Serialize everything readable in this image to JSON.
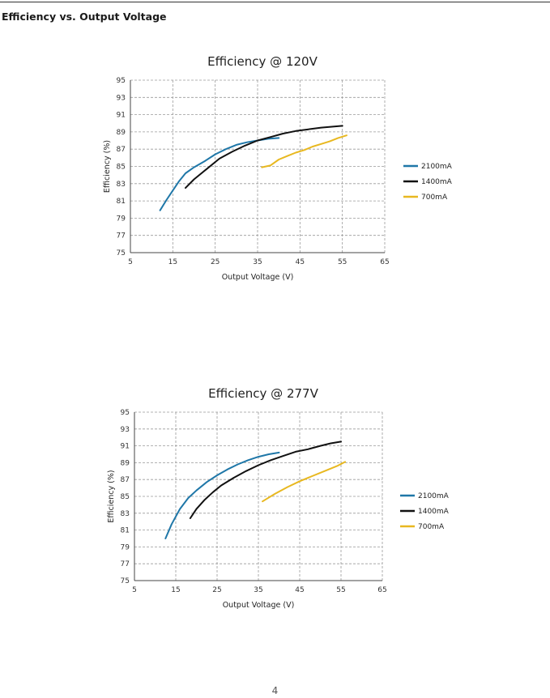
{
  "page": {
    "heading": "Efficiency vs. Output Voltage",
    "page_number": "4"
  },
  "chart_data": [
    {
      "type": "line",
      "title": "Efficiency @ 120V",
      "xlabel": "Output Voltage (V)",
      "ylabel": "Efficiency (%)",
      "xlim": [
        5,
        65
      ],
      "ylim": [
        75,
        95
      ],
      "xticks": [
        "5",
        "15",
        "25",
        "35",
        "45",
        "55",
        "65"
      ],
      "yticks": [
        "75",
        "77",
        "79",
        "81",
        "83",
        "85",
        "87",
        "89",
        "91",
        "93",
        "95"
      ],
      "grid": true,
      "legend_position": "right",
      "series": [
        {
          "name": "2100mA",
          "color": "#1f77a8",
          "x": [
            12,
            13.5,
            15,
            16.5,
            18,
            20,
            22.5,
            25,
            27.5,
            30,
            32.5,
            35,
            37.5,
            40
          ],
          "y": [
            79.9,
            81.1,
            82.2,
            83.3,
            84.2,
            84.9,
            85.6,
            86.4,
            87.0,
            87.5,
            87.8,
            88.0,
            88.2,
            88.3
          ]
        },
        {
          "name": "1400mA",
          "color": "#111111",
          "x": [
            18,
            20,
            23,
            26,
            29,
            32,
            35,
            38,
            41,
            44,
            47,
            50,
            52.5,
            55
          ],
          "y": [
            82.5,
            83.5,
            84.7,
            85.9,
            86.7,
            87.4,
            88.0,
            88.4,
            88.8,
            89.1,
            89.3,
            89.5,
            89.6,
            89.7
          ]
        },
        {
          "name": "700mA",
          "color": "#e8b820",
          "x": [
            36,
            38,
            40,
            42,
            44,
            46,
            48,
            50,
            52,
            54,
            56
          ],
          "y": [
            84.9,
            85.1,
            85.8,
            86.2,
            86.6,
            86.9,
            87.3,
            87.6,
            87.9,
            88.3,
            88.6
          ]
        }
      ]
    },
    {
      "type": "line",
      "title": "Efficiency @ 277V",
      "xlabel": "Output Voltage (V)",
      "ylabel": "Efficiency (%)",
      "xlim": [
        5,
        65
      ],
      "ylim": [
        75,
        95
      ],
      "xticks": [
        "5",
        "15",
        "25",
        "35",
        "45",
        "55",
        "65"
      ],
      "yticks": [
        "75",
        "77",
        "79",
        "81",
        "83",
        "85",
        "87",
        "89",
        "91",
        "93",
        "95"
      ],
      "grid": true,
      "legend_position": "right",
      "series": [
        {
          "name": "2100mA",
          "color": "#1f77a8",
          "x": [
            12.5,
            14,
            16,
            18,
            20,
            22.5,
            25,
            27.5,
            30,
            32.5,
            35,
            37.5,
            40
          ],
          "y": [
            80.0,
            81.7,
            83.5,
            84.8,
            85.7,
            86.7,
            87.5,
            88.2,
            88.8,
            89.3,
            89.7,
            90.0,
            90.2
          ]
        },
        {
          "name": "1400mA",
          "color": "#111111",
          "x": [
            18.5,
            20,
            22,
            24,
            26,
            29,
            32,
            35,
            38,
            41,
            44,
            47,
            50,
            52.5,
            55
          ],
          "y": [
            82.4,
            83.5,
            84.6,
            85.5,
            86.3,
            87.2,
            88.0,
            88.7,
            89.3,
            89.8,
            90.3,
            90.6,
            91.0,
            91.3,
            91.5
          ]
        },
        {
          "name": "700mA",
          "color": "#e8b820",
          "x": [
            36,
            39,
            42,
            45,
            48,
            51,
            54,
            56
          ],
          "y": [
            84.4,
            85.3,
            86.1,
            86.8,
            87.4,
            88.0,
            88.6,
            89.1
          ]
        }
      ]
    }
  ]
}
